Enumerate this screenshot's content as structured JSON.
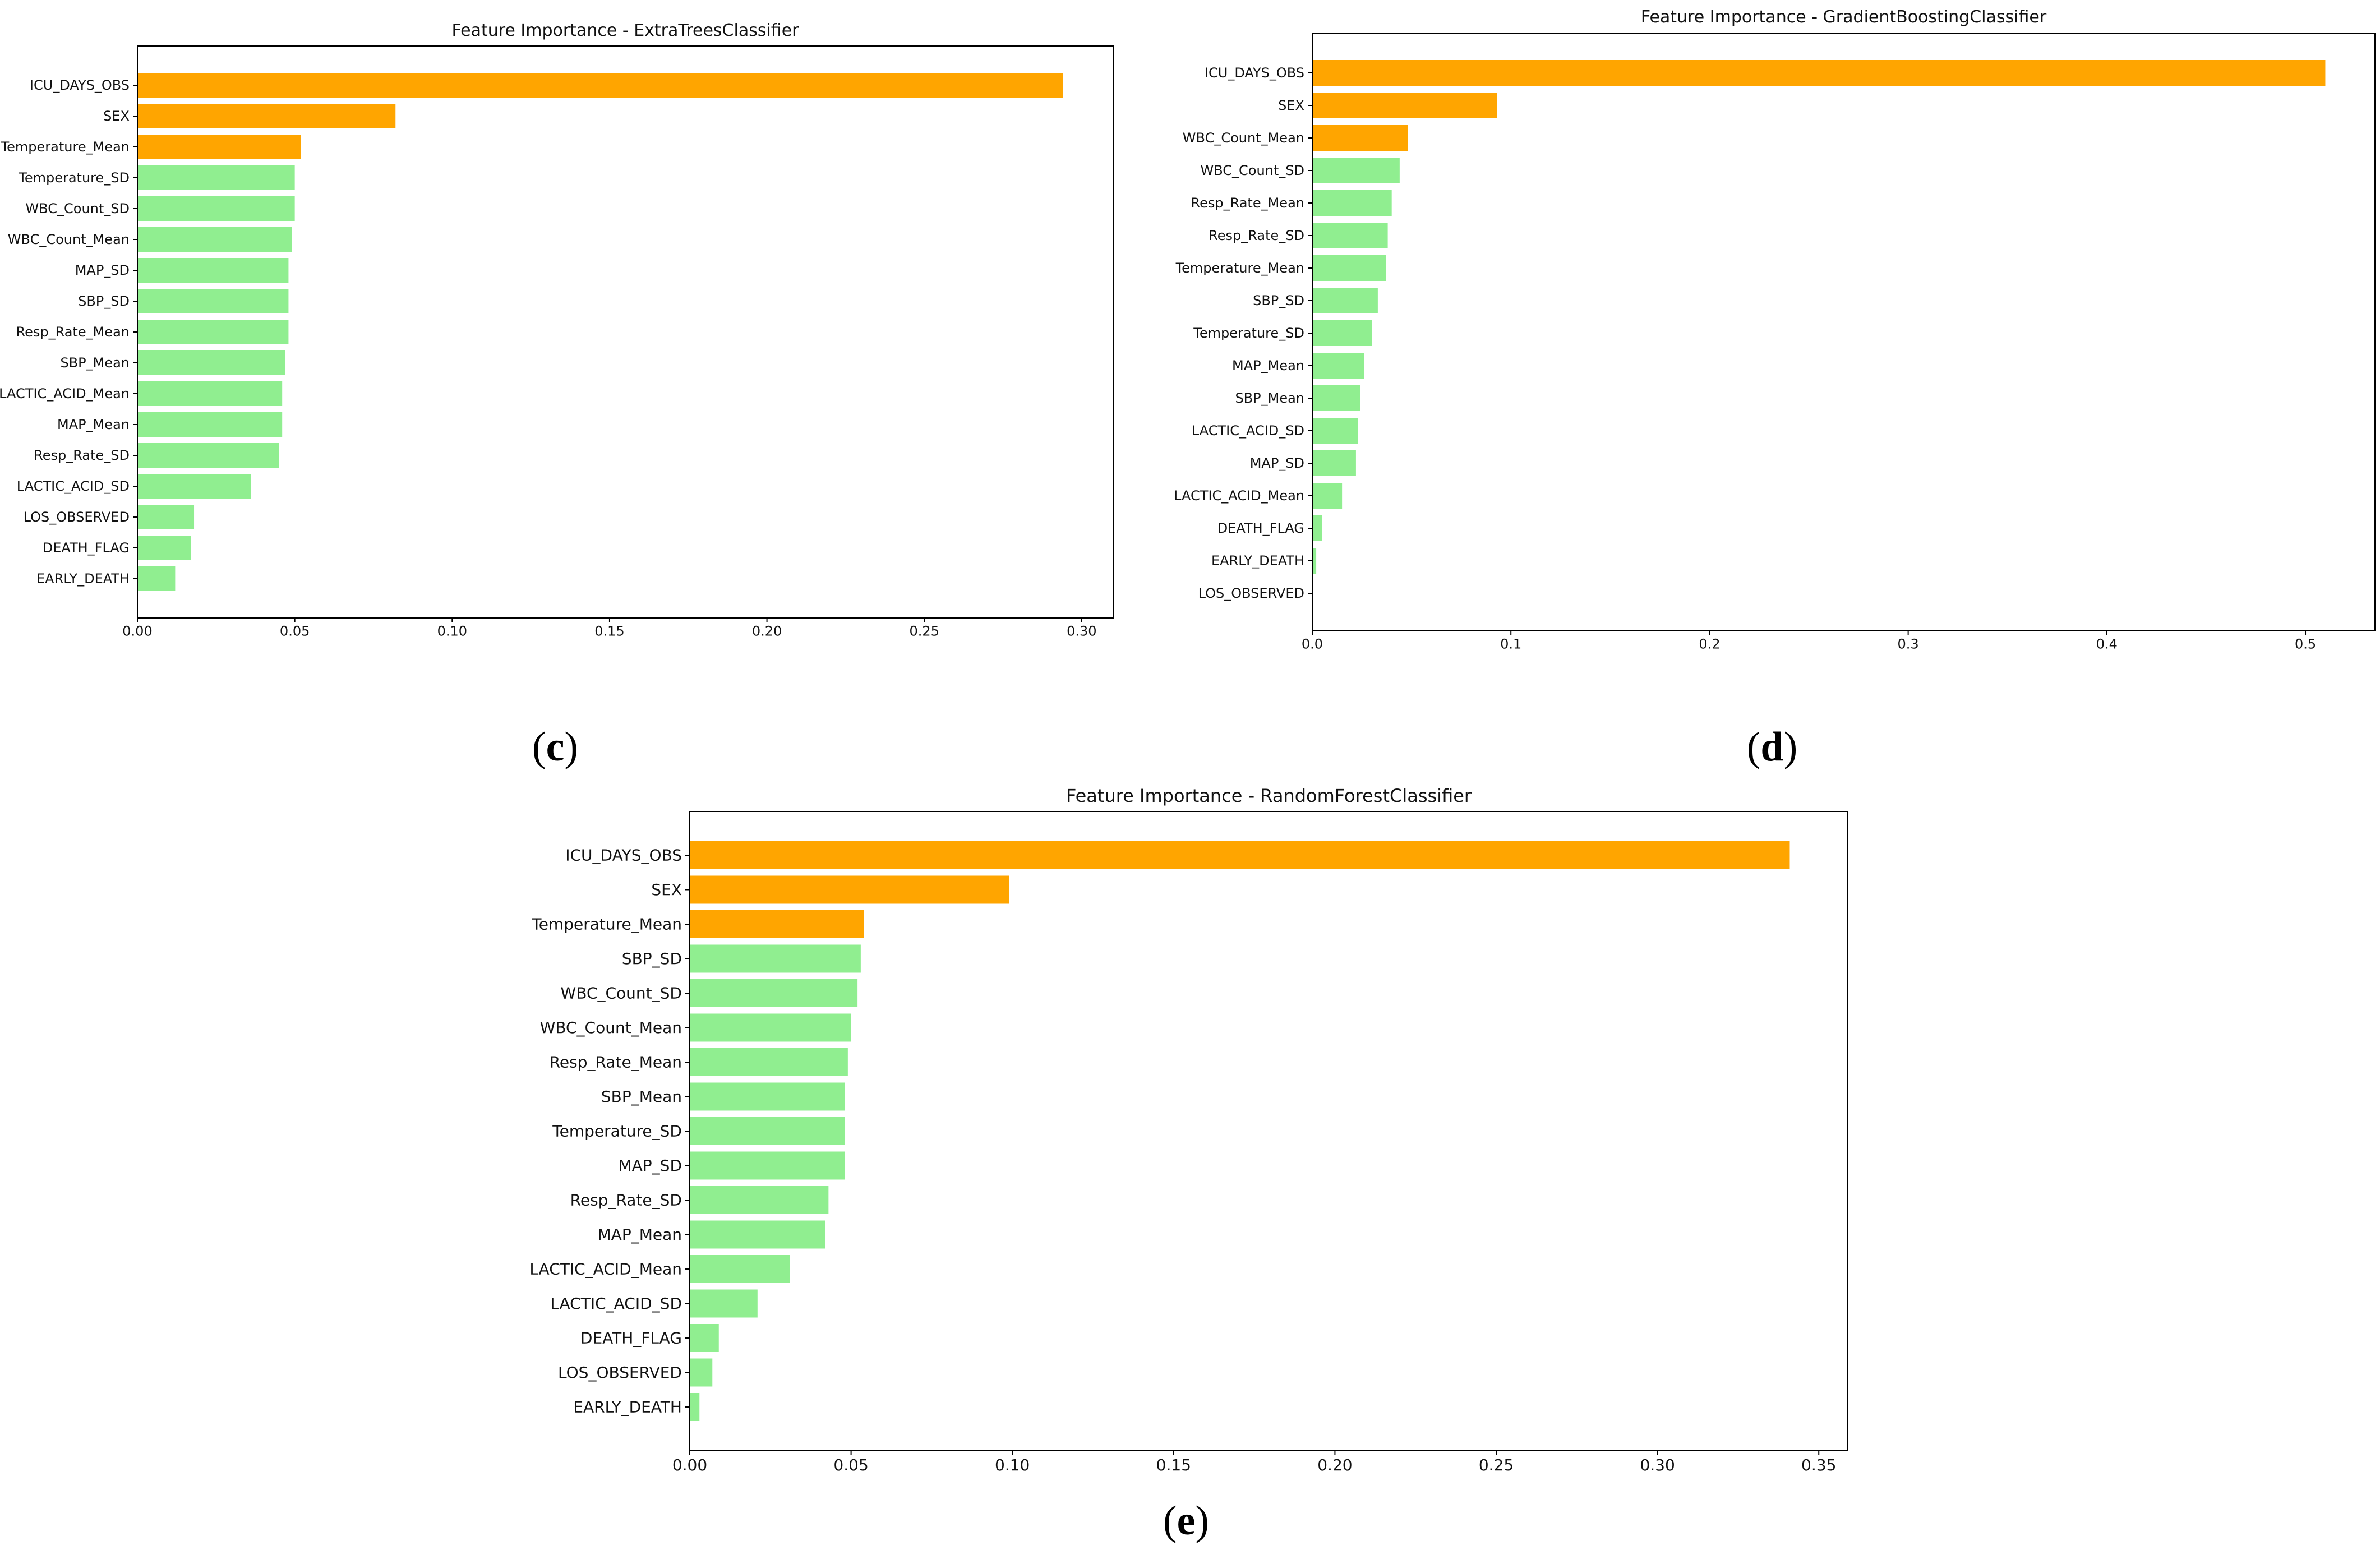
{
  "figure": {
    "panel_labels": [
      {
        "open": "(",
        "letter": "c",
        "close": ")"
      },
      {
        "open": "(",
        "letter": "d",
        "close": ")"
      },
      {
        "open": "(",
        "letter": "e",
        "close": ")"
      }
    ]
  },
  "colors": {
    "top": "#FFA500",
    "rest": "#90EE90",
    "axis": "#000000"
  },
  "chart_data": [
    {
      "type": "bar",
      "orientation": "horizontal",
      "title": "Feature Importance - ExtraTreesClassifier",
      "xlabel": "",
      "ylabel": "",
      "xlim": [
        0,
        0.31
      ],
      "xticks": [
        "0.00",
        "0.05",
        "0.10",
        "0.15",
        "0.20",
        "0.25",
        "0.30"
      ],
      "categories": [
        "ICU_DAYS_OBS",
        "SEX",
        "Temperature_Mean",
        "Temperature_SD",
        "WBC_Count_SD",
        "WBC_Count_Mean",
        "MAP_SD",
        "SBP_SD",
        "Resp_Rate_Mean",
        "SBP_Mean",
        "LACTIC_ACID_Mean",
        "MAP_Mean",
        "Resp_Rate_SD",
        "LACTIC_ACID_SD",
        "LOS_OBSERVED",
        "DEATH_FLAG",
        "EARLY_DEATH"
      ],
      "values": [
        0.294,
        0.082,
        0.052,
        0.05,
        0.05,
        0.049,
        0.048,
        0.048,
        0.048,
        0.047,
        0.046,
        0.046,
        0.045,
        0.036,
        0.018,
        0.017,
        0.012
      ],
      "highlight_top": 3
    },
    {
      "type": "bar",
      "orientation": "horizontal",
      "title": "Feature Importance - GradientBoostingClassifier",
      "xlabel": "",
      "ylabel": "",
      "xlim": [
        0,
        0.535
      ],
      "xticks": [
        "0.0",
        "0.1",
        "0.2",
        "0.3",
        "0.4",
        "0.5"
      ],
      "categories": [
        "ICU_DAYS_OBS",
        "SEX",
        "WBC_Count_Mean",
        "WBC_Count_SD",
        "Resp_Rate_Mean",
        "Resp_Rate_SD",
        "Temperature_Mean",
        "SBP_SD",
        "Temperature_SD",
        "MAP_Mean",
        "SBP_Mean",
        "LACTIC_ACID_SD",
        "MAP_SD",
        "LACTIC_ACID_Mean",
        "DEATH_FLAG",
        "EARLY_DEATH",
        "LOS_OBSERVED"
      ],
      "values": [
        0.51,
        0.093,
        0.048,
        0.044,
        0.04,
        0.038,
        0.037,
        0.033,
        0.03,
        0.026,
        0.024,
        0.023,
        0.022,
        0.015,
        0.005,
        0.002,
        0.0005
      ],
      "highlight_top": 3
    },
    {
      "type": "bar",
      "orientation": "horizontal",
      "title": "Feature Importance - RandomForestClassifier",
      "xlabel": "",
      "ylabel": "",
      "xlim": [
        0,
        0.359
      ],
      "xticks": [
        "0.00",
        "0.05",
        "0.10",
        "0.15",
        "0.20",
        "0.25",
        "0.30",
        "0.35"
      ],
      "categories": [
        "ICU_DAYS_OBS",
        "SEX",
        "Temperature_Mean",
        "SBP_SD",
        "WBC_Count_SD",
        "WBC_Count_Mean",
        "Resp_Rate_Mean",
        "SBP_Mean",
        "Temperature_SD",
        "MAP_SD",
        "Resp_Rate_SD",
        "MAP_Mean",
        "LACTIC_ACID_Mean",
        "LACTIC_ACID_SD",
        "DEATH_FLAG",
        "LOS_OBSERVED",
        "EARLY_DEATH"
      ],
      "values": [
        0.341,
        0.099,
        0.054,
        0.053,
        0.052,
        0.05,
        0.049,
        0.048,
        0.048,
        0.048,
        0.043,
        0.042,
        0.031,
        0.021,
        0.009,
        0.007,
        0.003
      ],
      "highlight_top": 3
    }
  ]
}
